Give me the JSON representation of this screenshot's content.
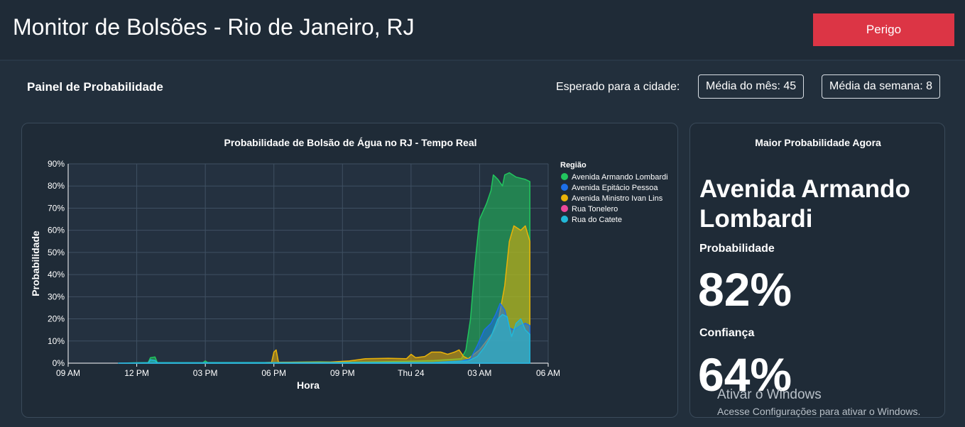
{
  "header": {
    "title": "Monitor de Bolsões - Rio de Janeiro, RJ",
    "status_button": "Perigo"
  },
  "panel": {
    "title": "Painel de Probabilidade",
    "expected_label": "Esperado para a cidade:",
    "month_avg": "Média do mês: 45",
    "week_avg": "Média da semana: 8"
  },
  "chart_data": {
    "type": "area",
    "title": "Probabilidade de Bolsão de Água no RJ - Tempo Real",
    "xlabel": "Hora",
    "ylabel": "Probabilidade",
    "ylim": [
      0,
      90
    ],
    "xlim": [
      0,
      21
    ],
    "x_ticks": [
      {
        "h": 0,
        "label": "09 AM"
      },
      {
        "h": 3,
        "label": "12 PM"
      },
      {
        "h": 6,
        "label": "03 PM"
      },
      {
        "h": 9,
        "label": "06 PM"
      },
      {
        "h": 12,
        "label": "09 PM"
      },
      {
        "h": 15,
        "label": "Thu 24"
      },
      {
        "h": 18,
        "label": "03 AM"
      },
      {
        "h": 21,
        "label": "06 AM"
      }
    ],
    "y_ticks": [
      "0%",
      "10%",
      "20%",
      "30%",
      "40%",
      "50%",
      "60%",
      "70%",
      "80%",
      "90%"
    ],
    "grid": true,
    "legend_title": "Região",
    "legend_position": "right",
    "series": [
      {
        "name": "Avenida Armando Lombardi",
        "color": "#22c55e",
        "points": [
          [
            2.2,
            0
          ],
          [
            3.5,
            0.3
          ],
          [
            3.6,
            2.5
          ],
          [
            3.8,
            2.8
          ],
          [
            3.9,
            0.3
          ],
          [
            5,
            0.2
          ],
          [
            5.9,
            0.2
          ],
          [
            6,
            1
          ],
          [
            6.1,
            0.3
          ],
          [
            9,
            0.3
          ],
          [
            11,
            0.6
          ],
          [
            12,
            0.4
          ],
          [
            13.5,
            0.6
          ],
          [
            15,
            0.9
          ],
          [
            16,
            1.2
          ],
          [
            17.2,
            2
          ],
          [
            17.4,
            6
          ],
          [
            17.6,
            20
          ],
          [
            17.8,
            45
          ],
          [
            18,
            65
          ],
          [
            18.3,
            72
          ],
          [
            18.5,
            78
          ],
          [
            18.6,
            85
          ],
          [
            18.8,
            83
          ],
          [
            19,
            80
          ],
          [
            19.1,
            85
          ],
          [
            19.3,
            86
          ],
          [
            19.6,
            84
          ],
          [
            20,
            83
          ],
          [
            20.2,
            82
          ],
          [
            20.2,
            0
          ]
        ]
      },
      {
        "name": "Avenida Ministro Ivan Lins",
        "color": "#eab308",
        "points": [
          [
            2.2,
            0
          ],
          [
            8.5,
            0.2
          ],
          [
            8.9,
            0.4
          ],
          [
            9,
            5
          ],
          [
            9.1,
            6
          ],
          [
            9.2,
            0.4
          ],
          [
            11.5,
            0.5
          ],
          [
            12.3,
            1
          ],
          [
            13,
            2
          ],
          [
            14,
            2.2
          ],
          [
            14.8,
            2
          ],
          [
            15,
            4
          ],
          [
            15.2,
            2.5
          ],
          [
            15.6,
            3
          ],
          [
            15.9,
            5
          ],
          [
            16.3,
            5
          ],
          [
            16.6,
            4
          ],
          [
            16.9,
            5
          ],
          [
            17.1,
            6
          ],
          [
            17.3,
            3
          ],
          [
            17.5,
            2
          ],
          [
            18,
            6
          ],
          [
            18.3,
            10
          ],
          [
            18.6,
            14
          ],
          [
            18.8,
            18
          ],
          [
            19.1,
            35
          ],
          [
            19.3,
            55
          ],
          [
            19.5,
            62
          ],
          [
            19.8,
            60
          ],
          [
            20,
            62
          ],
          [
            20.2,
            55
          ],
          [
            20.2,
            0
          ]
        ]
      },
      {
        "name": "Rua Tonelero",
        "color": "#ec4899",
        "points": [
          [
            2.2,
            0
          ],
          [
            20.2,
            0
          ]
        ]
      },
      {
        "name": "Avenida Epitácio Pessoa",
        "color": "#1d6fe8",
        "points": [
          [
            2.2,
            0
          ],
          [
            8,
            0.2
          ],
          [
            16,
            0.3
          ],
          [
            17.2,
            1
          ],
          [
            17.6,
            2
          ],
          [
            17.9,
            8
          ],
          [
            18.2,
            15
          ],
          [
            18.5,
            18
          ],
          [
            18.7,
            22
          ],
          [
            18.9,
            27
          ],
          [
            19.1,
            24
          ],
          [
            19.3,
            16
          ],
          [
            19.5,
            15
          ],
          [
            19.8,
            17
          ],
          [
            20,
            18
          ],
          [
            20.2,
            17
          ],
          [
            20.2,
            0
          ]
        ]
      },
      {
        "name": "Rua do Catete",
        "color": "#22b8d8",
        "points": [
          [
            2.2,
            0
          ],
          [
            3.5,
            0.2
          ],
          [
            3.6,
            1.5
          ],
          [
            3.8,
            1.2
          ],
          [
            3.9,
            0.2
          ],
          [
            16,
            0.3
          ],
          [
            17.5,
            1
          ],
          [
            17.9,
            3
          ],
          [
            18.2,
            7
          ],
          [
            18.5,
            12
          ],
          [
            18.8,
            20
          ],
          [
            19,
            22
          ],
          [
            19.2,
            21
          ],
          [
            19.4,
            12
          ],
          [
            19.6,
            18
          ],
          [
            19.8,
            20
          ],
          [
            20,
            15
          ],
          [
            20.2,
            13
          ],
          [
            20.2,
            0
          ]
        ]
      }
    ]
  },
  "side": {
    "title": "Maior Probabilidade Agora",
    "region": "Avenida Armando Lombardi",
    "probability_label": "Probabilidade",
    "probability_value": "82%",
    "confidence_label": "Confiança",
    "confidence_value": "64%"
  },
  "watermark": {
    "title": "Ativar o Windows",
    "subtitle": "Acesse Configurações para ativar o Windows."
  }
}
